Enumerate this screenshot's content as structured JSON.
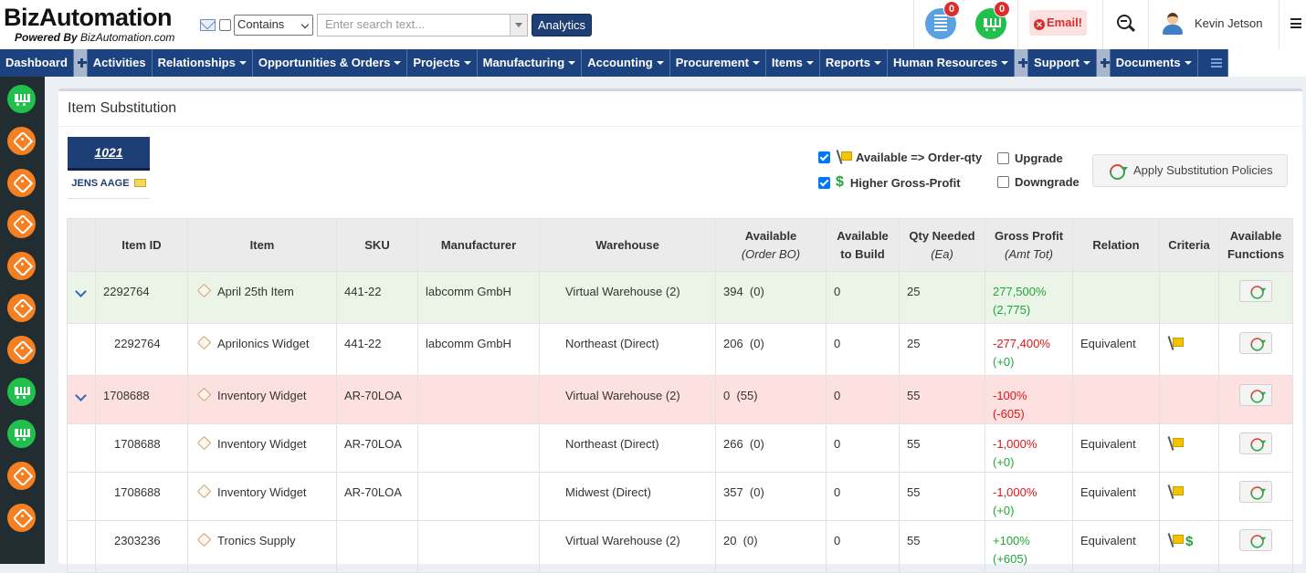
{
  "brand": {
    "name": "BizAutomation",
    "tagline": "Powered By",
    "url": "BizAutomation.com"
  },
  "search": {
    "mode": "Contains",
    "placeholder": "Enter search text...",
    "analytics_label": "Analytics"
  },
  "header": {
    "warehouse_badge": "0",
    "cart_badge": "0",
    "email_label": "Email!",
    "user_name": "Kevin Jetson"
  },
  "nav": {
    "items": [
      {
        "label": "Dashboard"
      },
      {
        "label": "Activities"
      },
      {
        "label": "Relationships"
      },
      {
        "label": "Opportunities & Orders"
      },
      {
        "label": "Projects"
      },
      {
        "label": "Manufacturing"
      },
      {
        "label": "Accounting"
      },
      {
        "label": "Procurement"
      },
      {
        "label": "Items"
      },
      {
        "label": "Reports"
      },
      {
        "label": "Human Resources"
      },
      {
        "label": "Support"
      },
      {
        "label": "Documents"
      }
    ]
  },
  "page": {
    "title": "Item Substitution",
    "order_number": "1021",
    "customer": "JENS AAGE"
  },
  "options": {
    "available_order_qty": "Available => Order-qty",
    "higher_gross_profit": "Higher Gross-Profit",
    "upgrade": "Upgrade",
    "downgrade": "Downgrade",
    "apply_label": "Apply Substitution Policies"
  },
  "table": {
    "headers": {
      "item_id": "Item ID",
      "item": "Item",
      "sku": "SKU",
      "manufacturer": "Manufacturer",
      "warehouse": "Warehouse",
      "available": "Available",
      "available_sub": "(Order BO)",
      "available_build_1": "Available",
      "available_build_2": "to Build",
      "qty_needed": "Qty Needed",
      "qty_needed_sub": "(Ea)",
      "gross_profit": "Gross Profit",
      "gross_profit_sub": "(Amt Tot)",
      "relation": "Relation",
      "criteria": "Criteria",
      "functions_1": "Available",
      "functions_2": "Functions"
    },
    "rows": [
      {
        "item_id": "2292764",
        "item": "April 25th Item",
        "sku": "441-22",
        "manufacturer": "labcomm GmbH",
        "warehouse": "Virtual Warehouse (2)",
        "available": "394  (0)",
        "build": "0",
        "qty": "25",
        "gp_pct": "277,500%",
        "gp_amt": "(2,775)",
        "relation": ""
      },
      {
        "item_id": "2292764",
        "item": "Aprilonics Widget",
        "sku": "441-22",
        "manufacturer": "labcomm GmbH",
        "warehouse": "Northeast (Direct)",
        "available": "206  (0)",
        "build": "0",
        "qty": "25",
        "gp_pct": "-277,400%",
        "gp_amt": "(+0)",
        "relation": "Equivalent"
      },
      {
        "item_id": "1708688",
        "item": "Inventory Widget",
        "sku": "AR-70LOA",
        "manufacturer": "",
        "warehouse": "Virtual Warehouse (2)",
        "available": "0  (55)",
        "build": "0",
        "qty": "55",
        "gp_pct": "-100%",
        "gp_amt": "(-605)",
        "relation": ""
      },
      {
        "item_id": "1708688",
        "item": "Inventory Widget",
        "sku": "AR-70LOA",
        "manufacturer": "",
        "warehouse": "Northeast (Direct)",
        "available": "266  (0)",
        "build": "0",
        "qty": "55",
        "gp_pct": "-1,000%",
        "gp_amt": "(+0)",
        "relation": "Equivalent"
      },
      {
        "item_id": "1708688",
        "item": "Inventory Widget",
        "sku": "AR-70LOA",
        "manufacturer": "",
        "warehouse": "Midwest (Direct)",
        "available": "357  (0)",
        "build": "0",
        "qty": "55",
        "gp_pct": "-1,000%",
        "gp_amt": "(+0)",
        "relation": "Equivalent"
      },
      {
        "item_id": "2303236",
        "item": "Tronics Supply",
        "sku": "",
        "manufacturer": "",
        "warehouse": "Virtual Warehouse (2)",
        "available": "20  (0)",
        "build": "0",
        "qty": "55",
        "gp_pct": "+100%",
        "gp_amt": "(+605)",
        "relation": "Equivalent"
      }
    ]
  },
  "colors": {
    "nav_bg": "#1d4280",
    "positive": "#1fa53a",
    "negative": "#e01515",
    "parent_green": "#eaf5e7",
    "parent_red": "#fde1e1"
  }
}
